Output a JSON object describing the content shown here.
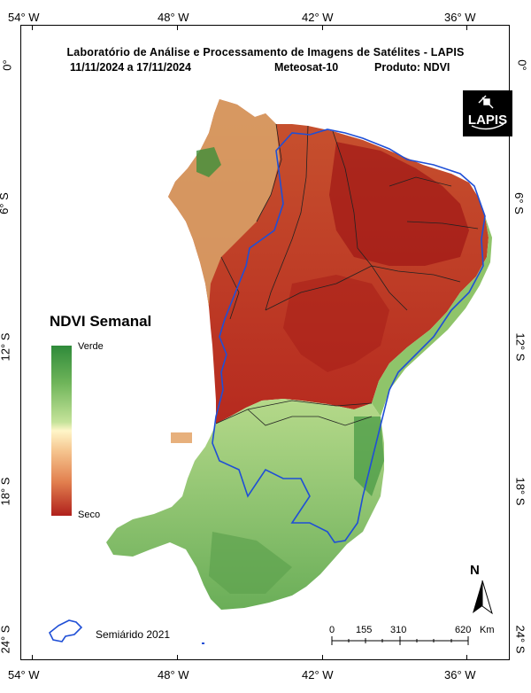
{
  "title": "Laboratório de Análise e Processamento de Imagens de Satélites - LAPIS",
  "subtitle": {
    "period": "11/11/2024  a  17/11/2024",
    "satellite": "Meteosat-10",
    "product": "Produto: NDVI"
  },
  "logo_text": "LAPIS",
  "axes": {
    "longitude_labels": [
      "54° W",
      "48° W",
      "42° W",
      "36° W"
    ],
    "latitude_labels": [
      "0°",
      "6° S",
      "12° S",
      "18° S",
      "24° S"
    ]
  },
  "legend": {
    "title": "NDVI Semanal",
    "top_label": "Verde",
    "bottom_label": "Seco"
  },
  "semiarid_label": "Semiárido 2021",
  "scale_bar": {
    "ticks": [
      "0",
      "155",
      "310",
      "620"
    ],
    "unit": "Km"
  },
  "north_label": "N",
  "colors": {
    "green": "#2f8a3a",
    "yellow": "#fff6c8",
    "red": "#b0201c",
    "semiarid_border": "#1f4fd6"
  }
}
